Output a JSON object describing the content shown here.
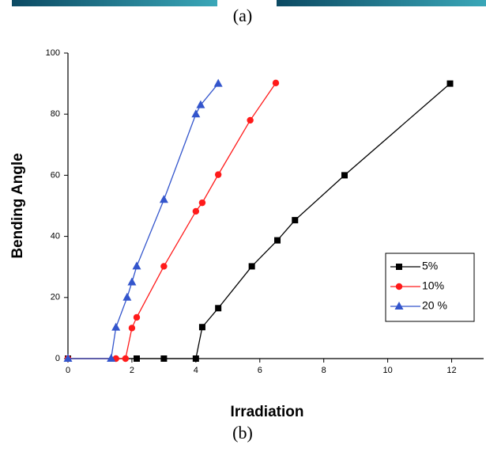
{
  "captions": {
    "top": "(a)",
    "bottom": "(b)"
  },
  "chart_data": {
    "type": "line",
    "x_label": "Irradiation",
    "y_label": "Bending Angle",
    "xlim": [
      0,
      13
    ],
    "xticks": [
      0,
      2,
      4,
      6,
      8,
      10,
      12
    ],
    "ylim": [
      0,
      100
    ],
    "yticks": [
      0,
      20,
      40,
      60,
      80,
      100
    ],
    "legend": "right",
    "series": [
      {
        "name": "5%",
        "color": "#000000",
        "marker": "square",
        "x": [
          0,
          2.15,
          3.0,
          4.0,
          4.2,
          4.7,
          5.75,
          6.55,
          7.1,
          8.65,
          11.95
        ],
        "values": [
          0,
          0,
          0,
          0,
          10.3,
          16.5,
          30.2,
          38.7,
          45.3,
          60,
          90
        ]
      },
      {
        "name": "10%",
        "color": "#ff1a1a",
        "marker": "circle",
        "x": [
          0,
          1.5,
          1.8,
          2.0,
          2.15,
          3.0,
          4.0,
          4.2,
          4.7,
          5.7,
          6.5
        ],
        "values": [
          0,
          0,
          0,
          10,
          13.5,
          30.2,
          48.2,
          51,
          60.2,
          78,
          90.2
        ]
      },
      {
        "name": "20 %",
        "color": "#3355cc",
        "marker": "triangle",
        "x": [
          0,
          1.35,
          1.5,
          1.85,
          2.0,
          2.15,
          3.0,
          4.0,
          4.15,
          4.7
        ],
        "values": [
          0,
          0,
          10.2,
          20,
          25,
          30.2,
          52,
          80,
          83,
          90
        ]
      }
    ]
  }
}
